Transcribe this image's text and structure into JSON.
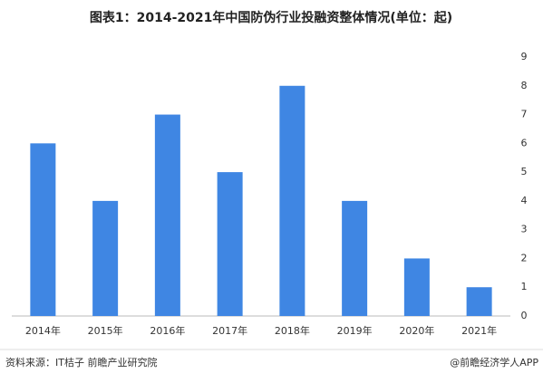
{
  "chart_data": {
    "type": "bar",
    "title": "图表1：2014-2021年中国防伪行业投融资整体情况(单位：起)",
    "categories": [
      "2014年",
      "2015年",
      "2016年",
      "2017年",
      "2018年",
      "2019年",
      "2020年",
      "2021年"
    ],
    "values": [
      6,
      4,
      7,
      5,
      8,
      4,
      2,
      1
    ],
    "color": "#3f86e3",
    "ylim": [
      0,
      9
    ],
    "yticks": [
      0,
      1,
      2,
      3,
      4,
      5,
      6,
      7,
      8,
      9
    ],
    "grid": false,
    "source": "资料来源：IT桔子 前瞻产业研究院",
    "credit": "@前瞻经济学人APP"
  }
}
